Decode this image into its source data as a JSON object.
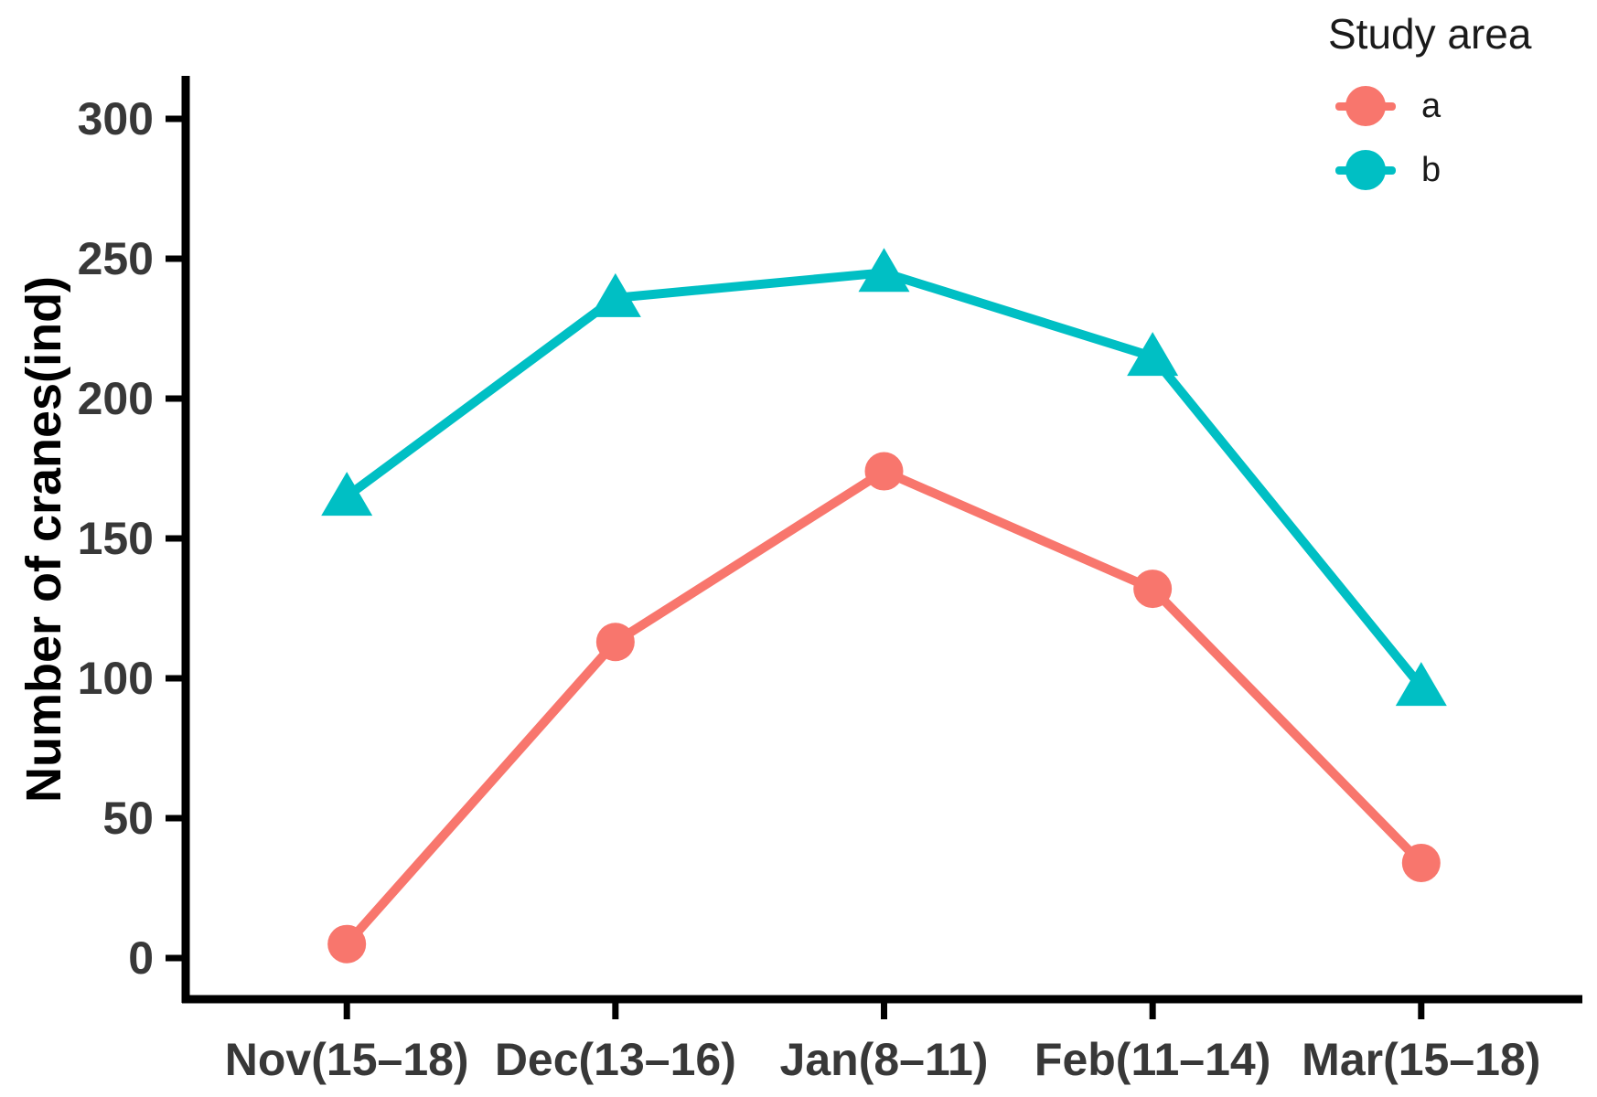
{
  "figure": {
    "background": "#ffffff",
    "axis_color": "#000000",
    "tick_label_color": "#383838"
  },
  "chart_data": {
    "type": "line",
    "title": "",
    "xlabel": "",
    "ylabel": "Number of cranes(ind)",
    "categories": [
      "Nov(15–18)",
      "Dec(13–16)",
      "Jan(8–11)",
      "Feb(11–14)",
      "Mar(15–18)"
    ],
    "y_ticks": [
      0,
      50,
      100,
      150,
      200,
      250,
      300
    ],
    "ylim": [
      0,
      300
    ],
    "grid": false,
    "legend": {
      "title": "Study area",
      "position": "top-right"
    },
    "series": [
      {
        "name": "a",
        "color": "#F8766D",
        "marker": "circle",
        "values": [
          5,
          113,
          174,
          132,
          34
        ]
      },
      {
        "name": "b",
        "color": "#00BFC4",
        "marker": "triangle",
        "values": [
          165,
          236,
          245,
          215,
          97
        ]
      }
    ]
  }
}
